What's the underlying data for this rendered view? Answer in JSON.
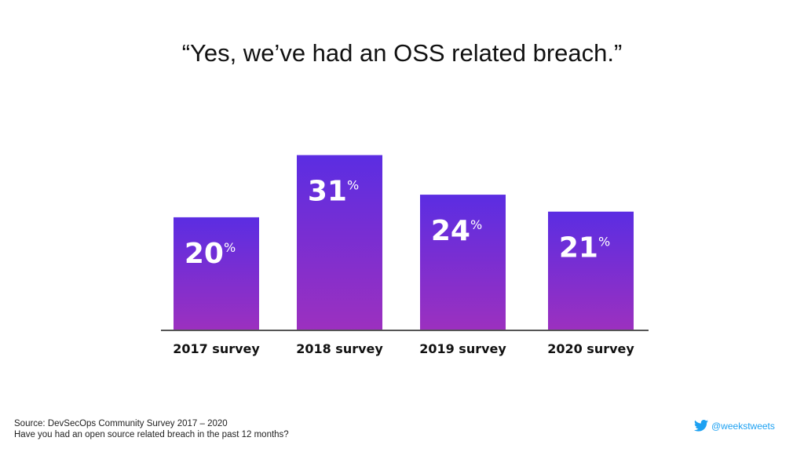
{
  "chart_data": {
    "type": "bar",
    "title": "“Yes, we’ve had an OSS related breach.”",
    "categories": [
      "2017 survey",
      "2018 survey",
      "2019 survey",
      "2020 survey"
    ],
    "values": [
      20,
      31,
      24,
      21
    ],
    "unit": "%",
    "xlabel": "",
    "ylabel": "",
    "ylim": [
      0,
      39
    ],
    "grid": false,
    "legend": "none",
    "colors": {
      "bar_top": "#5b2de2",
      "bar_bottom": "#9c30bf",
      "axis": "#555555",
      "label": "#ffffff"
    }
  },
  "footer": {
    "source": "Source: DevSecOps Community Survey 2017 – 2020",
    "question": "Have you had an open source related breach in the past 12 months?",
    "handle": "@weekstweets",
    "handle_icon": "twitter-bird-icon",
    "handle_color": "#1da1f2"
  }
}
